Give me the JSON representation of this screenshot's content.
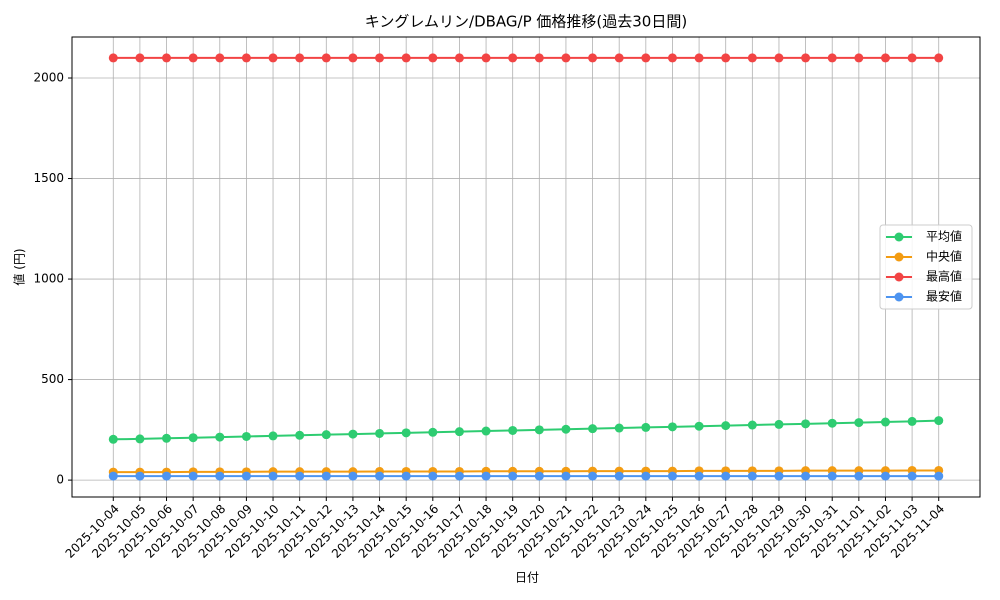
{
  "chart_data": {
    "type": "line",
    "title": "キングレムリン/DBAG/P 価格推移(過去30日間)",
    "x_label": "日付",
    "y_label": "値 (円)",
    "categories": [
      "2025-10-04",
      "2025-10-05",
      "2025-10-06",
      "2025-10-07",
      "2025-10-08",
      "2025-10-09",
      "2025-10-10",
      "2025-10-11",
      "2025-10-12",
      "2025-10-13",
      "2025-10-14",
      "2025-10-15",
      "2025-10-16",
      "2025-10-17",
      "2025-10-18",
      "2025-10-19",
      "2025-10-20",
      "2025-10-21",
      "2025-10-22",
      "2025-10-23",
      "2025-10-24",
      "2025-10-25",
      "2025-10-26",
      "2025-10-27",
      "2025-10-28",
      "2025-10-29",
      "2025-10-30",
      "2025-10-31",
      "2025-11-01",
      "2025-11-02",
      "2025-11-03",
      "2025-11-04"
    ],
    "series": [
      {
        "name": "平均値",
        "color": "#2ecc71",
        "values": [
          203,
          205,
          208,
          211,
          214,
          217,
          220,
          223,
          226,
          229,
          232,
          235,
          238,
          241,
          244,
          247,
          250,
          253,
          256,
          259,
          262,
          265,
          268,
          271,
          274,
          277,
          280,
          283,
          286,
          289,
          292,
          296
        ]
      },
      {
        "name": "中央値",
        "color": "#f39c12",
        "values": [
          40,
          40,
          40,
          41,
          41,
          41,
          42,
          42,
          42,
          42,
          43,
          43,
          43,
          43,
          44,
          44,
          44,
          44,
          45,
          45,
          45,
          45,
          46,
          46,
          46,
          46,
          47,
          47,
          47,
          47,
          48,
          48
        ]
      },
      {
        "name": "最高値",
        "color": "#f24444",
        "values": [
          2100,
          2100,
          2100,
          2100,
          2100,
          2100,
          2100,
          2100,
          2100,
          2100,
          2100,
          2100,
          2100,
          2100,
          2100,
          2100,
          2100,
          2100,
          2100,
          2100,
          2100,
          2100,
          2100,
          2100,
          2100,
          2100,
          2100,
          2100,
          2100,
          2100,
          2100,
          2100
        ]
      },
      {
        "name": "最安値",
        "color": "#4d94f0",
        "values": [
          20,
          20,
          20,
          20,
          20,
          20,
          20,
          20,
          20,
          20,
          20,
          20,
          20,
          20,
          20,
          20,
          20,
          20,
          20,
          20,
          20,
          20,
          20,
          20,
          20,
          20,
          20,
          20,
          20,
          20,
          20,
          20
        ]
      }
    ],
    "ylim": [
      -84,
      2204
    ],
    "yticks": [
      0,
      500,
      1000,
      1500,
      2000
    ],
    "grid": true,
    "legend": "center right"
  }
}
